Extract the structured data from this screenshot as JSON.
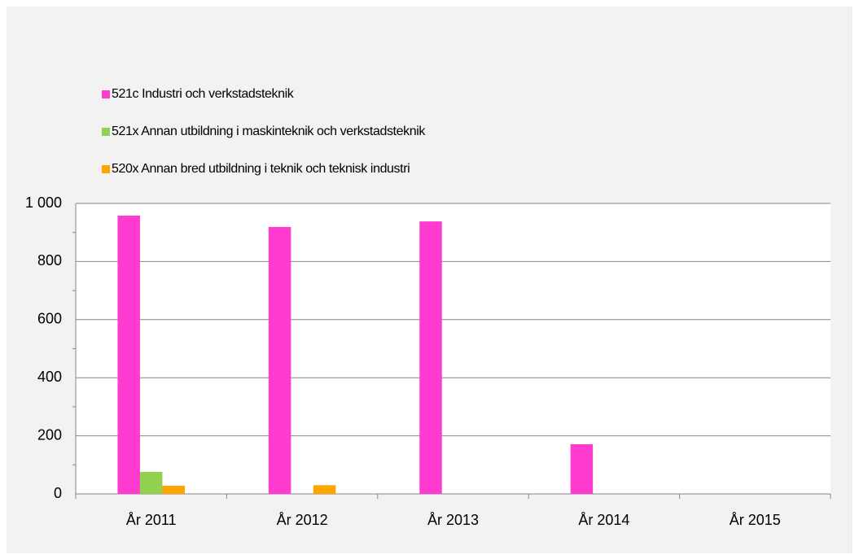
{
  "chart_data": {
    "type": "bar",
    "categories": [
      "År 2011",
      "År 2012",
      "År 2013",
      "År 2014",
      "År 2015"
    ],
    "series": [
      {
        "name": "521c Industri och verkstadsteknik",
        "color": "#ff3ccf",
        "values": [
          958,
          919,
          938,
          171,
          0
        ]
      },
      {
        "name": "521x Annan utbildning i maskinteknik och verkstadsteknik",
        "color": "#92d050",
        "values": [
          76,
          0,
          0,
          0,
          0
        ]
      },
      {
        "name": "520x Annan bred utbildning i teknik och teknisk industri",
        "color": "#ffa500",
        "values": [
          28,
          30,
          0,
          0,
          0
        ]
      }
    ],
    "ylim": [
      0,
      1000
    ],
    "yticks": [
      0,
      200,
      400,
      600,
      800,
      {
        "value": 1000,
        "label": "1 000"
      }
    ],
    "grid": true,
    "legend": "top-left"
  }
}
